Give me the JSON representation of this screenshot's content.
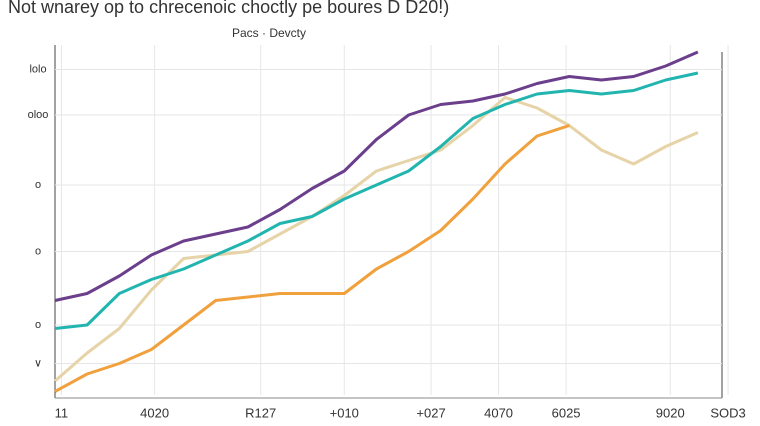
{
  "chart_data": {
    "type": "line",
    "title": "Not wnarey op to chrecenoic choctly pe boures D D20!)",
    "subtitle": "Pacs · Devcty",
    "x": [
      0,
      5,
      10,
      15,
      20,
      25,
      30,
      35,
      40,
      45,
      50,
      55,
      60,
      65,
      70,
      75,
      80,
      85,
      90,
      95,
      100
    ],
    "series": [
      {
        "color": "#6b3f8c",
        "values": [
          27,
          29,
          34,
          40,
          44,
          46,
          48,
          53,
          59,
          64,
          73,
          80,
          83,
          84,
          86,
          89,
          91,
          90,
          91,
          94,
          98
        ]
      },
      {
        "color": "#22b5b0",
        "values": [
          19,
          20,
          29,
          33,
          36,
          40,
          44,
          49,
          51,
          56,
          60,
          64,
          71,
          79,
          83,
          86,
          87,
          86,
          87,
          90,
          92
        ]
      },
      {
        "color": "#f0a03c",
        "values": [
          1,
          6,
          9,
          13,
          20,
          27,
          28,
          29,
          29,
          29,
          36,
          41,
          47,
          56,
          66,
          74,
          77,
          null,
          null,
          null,
          null
        ]
      },
      {
        "color": "#e6d3a8",
        "values": [
          4,
          12,
          19,
          30,
          39,
          40,
          41,
          46,
          51,
          57,
          64,
          67,
          70,
          77,
          85,
          82,
          77,
          70,
          66,
          71,
          75
        ]
      }
    ],
    "xlim": [
      0,
      105
    ],
    "ylim": [
      0,
      100
    ],
    "xticks": [
      {
        "value": 1,
        "label": "11"
      },
      {
        "value": 15.5,
        "label": "4020"
      },
      {
        "value": 32,
        "label": "R127"
      },
      {
        "value": 45,
        "label": "+010"
      },
      {
        "value": 58.5,
        "label": "+027"
      },
      {
        "value": 69,
        "label": "4070"
      },
      {
        "value": 79.5,
        "label": "6025"
      },
      {
        "value": 95.7,
        "label": "9020"
      },
      {
        "value": 104.7,
        "label": "SOD3"
      }
    ],
    "yticks": [
      {
        "value": 93,
        "label": "lolo"
      },
      {
        "value": 80,
        "label": "oloo"
      },
      {
        "value": 60,
        "label": "o"
      },
      {
        "value": 41,
        "label": "o"
      },
      {
        "value": 20,
        "label": "o"
      },
      {
        "value": 9,
        "label": "∨"
      }
    ],
    "grid": true
  }
}
